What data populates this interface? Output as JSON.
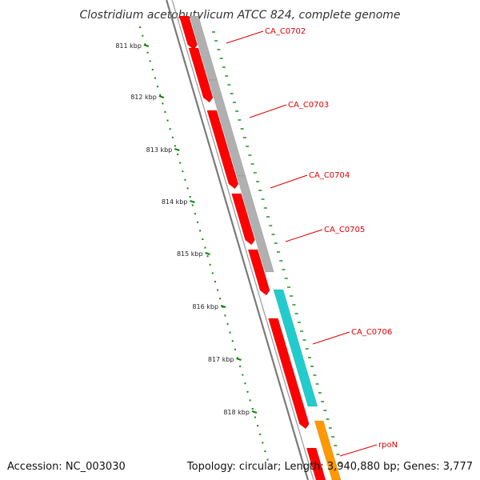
{
  "title": "Clostridium acetobutylicum ATCC 824, complete genome",
  "accession": "Accession: NC_003030",
  "summary": "Topology: circular; Length: 3,940,880 bp; Genes: 3,777",
  "colors": {
    "background": "#ffffff",
    "backbone": "#7a7a7a",
    "backbone_shadow": "#a0a0a0",
    "tick": "#118811",
    "label": "#e00000",
    "cds_forward": "#ff0000",
    "cds_forward_dark": "#b00000",
    "ortholog_gray": "#b0b0b0",
    "ortholog_cyan": "#22cccc",
    "ortholog_orange": "#ff9900"
  },
  "axis": {
    "unit": "kbp",
    "labels": [
      "811 kbp",
      "812 kbp",
      "813 kbp",
      "814 kbp",
      "815 kbp",
      "816 kbp",
      "817 kbp",
      "818 kbp"
    ]
  },
  "genes": [
    {
      "name": "CA_C0702",
      "strand": "forward"
    },
    {
      "name": "CA_C0703",
      "strand": "forward"
    },
    {
      "name": "CA_C0704",
      "strand": "forward"
    },
    {
      "name": "CA_C0705",
      "strand": "forward"
    },
    {
      "name": "CA_C0706",
      "strand": "forward"
    },
    {
      "name": "rpoN",
      "strand": "forward"
    }
  ]
}
